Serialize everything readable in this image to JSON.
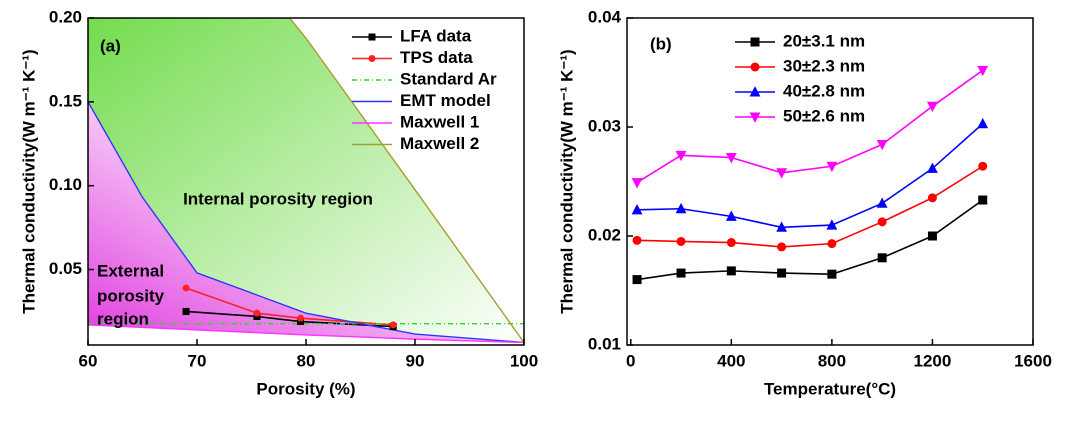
{
  "chart_data": [
    {
      "type": "line",
      "xlabel": "Porosity (%)",
      "ylabel": "Thermal conductivity(W m⁻¹ K⁻¹)",
      "annotations": [
        "(a)",
        "Internal porosity region",
        "External",
        "porosity",
        "region"
      ],
      "xlim": [
        60,
        100
      ],
      "xticks": [
        60,
        70,
        80,
        90,
        100
      ],
      "ylim": [
        0.005,
        0.2
      ],
      "yticks": [
        0.05,
        {
          "value": 0.1,
          "label": "0.10"
        },
        0.15,
        {
          "value": 0.2,
          "label": "0.20"
        }
      ],
      "legend": "upper right",
      "series": [
        {
          "name": "LFA data",
          "color": "#000000",
          "marker": "square",
          "x": [
            69,
            75.5,
            79.5,
            88
          ],
          "values": [
            0.025,
            0.022,
            0.019,
            0.016
          ]
        },
        {
          "name": "TPS data",
          "color": "#ff2020",
          "marker": "circle",
          "x": [
            69,
            75.5,
            79.5,
            88
          ],
          "values": [
            0.039,
            0.024,
            0.021,
            0.017
          ]
        },
        {
          "name": "Standard Ar",
          "color": "#22dd22",
          "dash": true,
          "x": [
            60,
            100
          ],
          "values": [
            0.0177,
            0.0177
          ]
        },
        {
          "name": "EMT model",
          "color": "#3333ff",
          "x": [
            60,
            65,
            70,
            80,
            90,
            100
          ],
          "values": [
            0.15,
            0.093,
            0.048,
            0.024,
            0.0115,
            0.0065
          ]
        },
        {
          "name": "Maxwell 1",
          "color": "#ff33ff",
          "x": [
            60,
            70,
            80,
            90,
            100
          ],
          "values": [
            0.017,
            0.014,
            0.011,
            0.0085,
            0.0065
          ]
        },
        {
          "name": "Maxwell 2",
          "color": "#a0a030",
          "x": [
            78.5,
            80,
            90,
            100
          ],
          "values": [
            0.2,
            0.188,
            0.0976,
            0.0065
          ]
        }
      ]
    },
    {
      "type": "line",
      "xlabel": "Temperature(°C)",
      "ylabel": "Thermal conductivity(W m⁻¹ K⁻¹)",
      "annotations": [
        "(b)"
      ],
      "xlim": [
        -15,
        1600
      ],
      "xticks": [
        0,
        400,
        800,
        1200,
        1600
      ],
      "ylim": [
        0.01,
        0.04
      ],
      "yticks": [
        0.01,
        0.02,
        0.03,
        0.04
      ],
      "legend": "upper left",
      "series": [
        {
          "name": "20±3.1 nm",
          "color": "#000000",
          "marker": "square",
          "x": [
            25,
            200,
            400,
            600,
            800,
            1000,
            1200,
            1400
          ],
          "values": [
            0.016,
            0.0166,
            0.0168,
            0.0166,
            0.0165,
            0.018,
            0.02,
            0.0233
          ]
        },
        {
          "name": "30±2.3 nm",
          "color": "#ff0000",
          "marker": "circle",
          "x": [
            25,
            200,
            400,
            600,
            800,
            1000,
            1200,
            1400
          ],
          "values": [
            0.0196,
            0.0195,
            0.0194,
            0.019,
            0.0193,
            0.0213,
            0.0235,
            0.0264
          ]
        },
        {
          "name": "40±2.8 nm",
          "color": "#0000ff",
          "marker": "triangle-up",
          "x": [
            25,
            200,
            400,
            600,
            800,
            1000,
            1200,
            1400
          ],
          "values": [
            0.0224,
            0.0225,
            0.0218,
            0.0208,
            0.021,
            0.023,
            0.0262,
            0.0303
          ]
        },
        {
          "name": "50±2.6 nm",
          "color": "#ff00ff",
          "marker": "triangle-down",
          "x": [
            25,
            200,
            400,
            600,
            800,
            1000,
            1200,
            1400
          ],
          "values": [
            0.0249,
            0.0274,
            0.0272,
            0.0258,
            0.0264,
            0.0284,
            0.0319,
            0.0352
          ]
        }
      ]
    }
  ]
}
